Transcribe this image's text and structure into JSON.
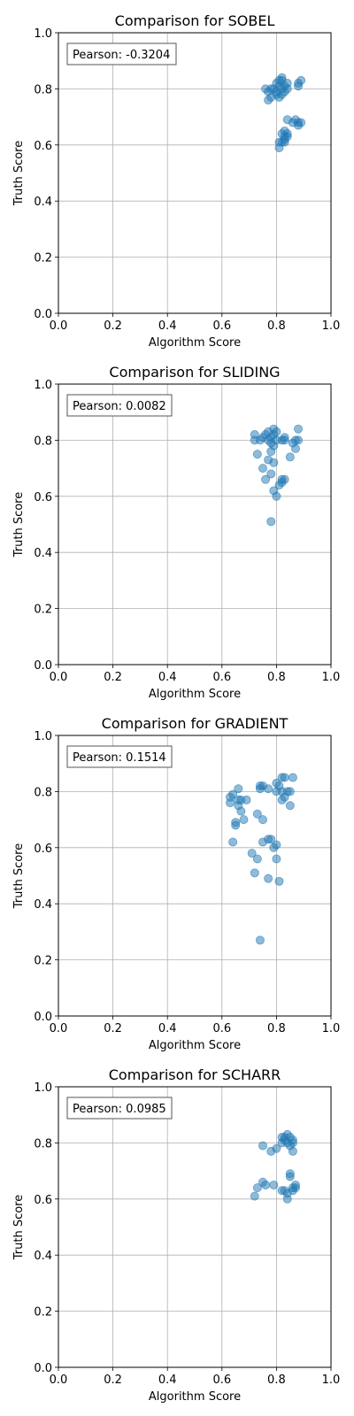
{
  "chart_data": [
    {
      "type": "scatter",
      "title": "Comparison for SOBEL",
      "xlabel": "Algorithm Score",
      "ylabel": "Truth Score",
      "xlim": [
        0,
        1
      ],
      "ylim": [
        0,
        1
      ],
      "xticks": [
        "0.0",
        "0.2",
        "0.4",
        "0.6",
        "0.8",
        "1.0"
      ],
      "yticks": [
        "0.0",
        "0.2",
        "0.4",
        "0.6",
        "0.8",
        "1.0"
      ],
      "grid": true,
      "annotation": "Pearson: -0.3204",
      "annotation_position": "top-left",
      "color": "#1f77b4",
      "points": [
        [
          0.76,
          0.8
        ],
        [
          0.77,
          0.79
        ],
        [
          0.78,
          0.8
        ],
        [
          0.78,
          0.77
        ],
        [
          0.77,
          0.76
        ],
        [
          0.79,
          0.8
        ],
        [
          0.8,
          0.79
        ],
        [
          0.8,
          0.82
        ],
        [
          0.81,
          0.81
        ],
        [
          0.81,
          0.83
        ],
        [
          0.82,
          0.83
        ],
        [
          0.82,
          0.8
        ],
        [
          0.83,
          0.81
        ],
        [
          0.83,
          0.79
        ],
        [
          0.82,
          0.78
        ],
        [
          0.84,
          0.8
        ],
        [
          0.81,
          0.77
        ],
        [
          0.8,
          0.78
        ],
        [
          0.82,
          0.84
        ],
        [
          0.84,
          0.82
        ],
        [
          0.88,
          0.82
        ],
        [
          0.89,
          0.83
        ],
        [
          0.88,
          0.81
        ],
        [
          0.87,
          0.69
        ],
        [
          0.88,
          0.68
        ],
        [
          0.89,
          0.68
        ],
        [
          0.86,
          0.68
        ],
        [
          0.88,
          0.67
        ],
        [
          0.84,
          0.69
        ],
        [
          0.83,
          0.65
        ],
        [
          0.84,
          0.64
        ],
        [
          0.83,
          0.63
        ],
        [
          0.84,
          0.63
        ],
        [
          0.82,
          0.64
        ],
        [
          0.83,
          0.62
        ],
        [
          0.82,
          0.61
        ],
        [
          0.81,
          0.61
        ],
        [
          0.83,
          0.61
        ],
        [
          0.81,
          0.59
        ]
      ]
    },
    {
      "type": "scatter",
      "title": "Comparison for SLIDING",
      "xlabel": "Algorithm Score",
      "ylabel": "Truth Score",
      "xlim": [
        0,
        1
      ],
      "ylim": [
        0,
        1
      ],
      "xticks": [
        "0.0",
        "0.2",
        "0.4",
        "0.6",
        "0.8",
        "1.0"
      ],
      "yticks": [
        "0.0",
        "0.2",
        "0.4",
        "0.6",
        "0.8",
        "1.0"
      ],
      "grid": true,
      "annotation": "Pearson: 0.0082",
      "annotation_position": "top-left",
      "color": "#1f77b4",
      "points": [
        [
          0.72,
          0.82
        ],
        [
          0.72,
          0.8
        ],
        [
          0.74,
          0.8
        ],
        [
          0.75,
          0.81
        ],
        [
          0.76,
          0.82
        ],
        [
          0.77,
          0.83
        ],
        [
          0.77,
          0.8
        ],
        [
          0.78,
          0.81
        ],
        [
          0.78,
          0.79
        ],
        [
          0.79,
          0.84
        ],
        [
          0.79,
          0.82
        ],
        [
          0.8,
          0.8
        ],
        [
          0.78,
          0.76
        ],
        [
          0.79,
          0.78
        ],
        [
          0.8,
          0.83
        ],
        [
          0.82,
          0.8
        ],
        [
          0.83,
          0.81
        ],
        [
          0.83,
          0.8
        ],
        [
          0.73,
          0.75
        ],
        [
          0.75,
          0.7
        ],
        [
          0.77,
          0.73
        ],
        [
          0.79,
          0.72
        ],
        [
          0.78,
          0.68
        ],
        [
          0.76,
          0.66
        ],
        [
          0.79,
          0.62
        ],
        [
          0.8,
          0.6
        ],
        [
          0.81,
          0.64
        ],
        [
          0.82,
          0.66
        ],
        [
          0.82,
          0.65
        ],
        [
          0.83,
          0.66
        ],
        [
          0.85,
          0.74
        ],
        [
          0.86,
          0.79
        ],
        [
          0.87,
          0.8
        ],
        [
          0.88,
          0.84
        ],
        [
          0.88,
          0.8
        ],
        [
          0.87,
          0.77
        ],
        [
          0.78,
          0.51
        ]
      ]
    },
    {
      "type": "scatter",
      "title": "Comparison for GRADIENT",
      "xlabel": "Algorithm Score",
      "ylabel": "Truth Score",
      "xlim": [
        0,
        1
      ],
      "ylim": [
        0,
        1
      ],
      "xticks": [
        "0.0",
        "0.2",
        "0.4",
        "0.6",
        "0.8",
        "1.0"
      ],
      "yticks": [
        "0.0",
        "0.2",
        "0.4",
        "0.6",
        "0.8",
        "1.0"
      ],
      "grid": true,
      "annotation": "Pearson: 0.1514",
      "annotation_position": "top-left",
      "color": "#1f77b4",
      "points": [
        [
          0.63,
          0.76
        ],
        [
          0.63,
          0.78
        ],
        [
          0.64,
          0.79
        ],
        [
          0.66,
          0.81
        ],
        [
          0.66,
          0.77
        ],
        [
          0.66,
          0.75
        ],
        [
          0.67,
          0.77
        ],
        [
          0.67,
          0.73
        ],
        [
          0.68,
          0.7
        ],
        [
          0.69,
          0.77
        ],
        [
          0.65,
          0.68
        ],
        [
          0.65,
          0.69
        ],
        [
          0.64,
          0.62
        ],
        [
          0.71,
          0.58
        ],
        [
          0.72,
          0.51
        ],
        [
          0.73,
          0.56
        ],
        [
          0.73,
          0.72
        ],
        [
          0.74,
          0.81
        ],
        [
          0.75,
          0.82
        ],
        [
          0.74,
          0.82
        ],
        [
          0.75,
          0.7
        ],
        [
          0.75,
          0.62
        ],
        [
          0.77,
          0.81
        ],
        [
          0.77,
          0.63
        ],
        [
          0.78,
          0.63
        ],
        [
          0.77,
          0.49
        ],
        [
          0.79,
          0.6
        ],
        [
          0.8,
          0.61
        ],
        [
          0.8,
          0.83
        ],
        [
          0.81,
          0.82
        ],
        [
          0.8,
          0.8
        ],
        [
          0.82,
          0.8
        ],
        [
          0.82,
          0.77
        ],
        [
          0.83,
          0.78
        ],
        [
          0.81,
          0.48
        ],
        [
          0.8,
          0.56
        ],
        [
          0.82,
          0.85
        ],
        [
          0.83,
          0.85
        ],
        [
          0.84,
          0.8
        ],
        [
          0.85,
          0.75
        ],
        [
          0.85,
          0.8
        ],
        [
          0.86,
          0.85
        ],
        [
          0.74,
          0.27
        ]
      ]
    },
    {
      "type": "scatter",
      "title": "Comparison for SCHARR",
      "xlabel": "Algorithm Score",
      "ylabel": "Truth Score",
      "xlim": [
        0,
        1
      ],
      "ylim": [
        0,
        1
      ],
      "xticks": [
        "0.0",
        "0.2",
        "0.4",
        "0.6",
        "0.8",
        "1.0"
      ],
      "yticks": [
        "0.0",
        "0.2",
        "0.4",
        "0.6",
        "0.8",
        "1.0"
      ],
      "grid": true,
      "annotation": "Pearson: 0.0985",
      "annotation_position": "top-left",
      "color": "#1f77b4",
      "points": [
        [
          0.75,
          0.79
        ],
        [
          0.78,
          0.77
        ],
        [
          0.8,
          0.78
        ],
        [
          0.82,
          0.8
        ],
        [
          0.82,
          0.82
        ],
        [
          0.83,
          0.82
        ],
        [
          0.84,
          0.83
        ],
        [
          0.83,
          0.81
        ],
        [
          0.84,
          0.8
        ],
        [
          0.85,
          0.79
        ],
        [
          0.86,
          0.8
        ],
        [
          0.86,
          0.81
        ],
        [
          0.86,
          0.77
        ],
        [
          0.85,
          0.82
        ],
        [
          0.72,
          0.61
        ],
        [
          0.73,
          0.64
        ],
        [
          0.75,
          0.66
        ],
        [
          0.76,
          0.65
        ],
        [
          0.79,
          0.65
        ],
        [
          0.82,
          0.63
        ],
        [
          0.83,
          0.63
        ],
        [
          0.84,
          0.62
        ],
        [
          0.84,
          0.6
        ],
        [
          0.85,
          0.68
        ],
        [
          0.86,
          0.63
        ],
        [
          0.87,
          0.64
        ],
        [
          0.85,
          0.69
        ],
        [
          0.86,
          0.64
        ],
        [
          0.87,
          0.65
        ]
      ]
    }
  ]
}
